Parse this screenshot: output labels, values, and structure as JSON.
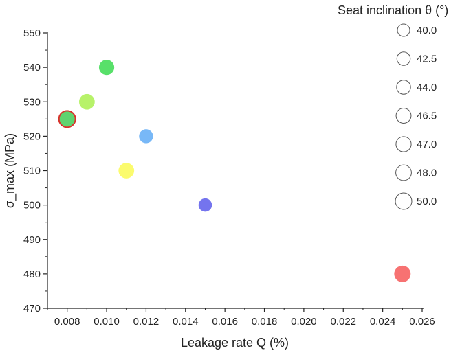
{
  "chart_data": {
    "type": "scatter",
    "xlabel": "Leakage rate Q (%)",
    "ylabel": "σ_max (MPa)",
    "xlim": [
      0.007,
      0.026
    ],
    "ylim": [
      470,
      550
    ],
    "xticks": [
      "0.008",
      "0.010",
      "0.012",
      "0.014",
      "0.016",
      "0.018",
      "0.020",
      "0.022",
      "0.024",
      "0.026"
    ],
    "yticks": [
      "470",
      "480",
      "490",
      "500",
      "510",
      "520",
      "530",
      "540",
      "550"
    ],
    "grid": false,
    "legend": {
      "title": "Seat inclination θ (°)",
      "placement": "top-right",
      "entries": [
        "40.0",
        "42.5",
        "44.0",
        "46.5",
        "47.0",
        "48.0",
        "50.0"
      ]
    },
    "points": [
      {
        "x": 0.008,
        "y": 525,
        "theta": 50.0,
        "color": "#5fd36f",
        "edge": "#d9312b"
      },
      {
        "x": 0.009,
        "y": 530,
        "theta": 48.0,
        "color": "#b7f26a",
        "edge": ""
      },
      {
        "x": 0.01,
        "y": 540,
        "theta": 47.0,
        "color": "#58e06a",
        "edge": ""
      },
      {
        "x": 0.011,
        "y": 510,
        "theta": 48.0,
        "color": "#fbfb6e",
        "edge": ""
      },
      {
        "x": 0.012,
        "y": 520,
        "theta": 44.0,
        "color": "#78b8f7",
        "edge": ""
      },
      {
        "x": 0.015,
        "y": 500,
        "theta": 42.5,
        "color": "#7474ee",
        "edge": ""
      },
      {
        "x": 0.025,
        "y": 480,
        "theta": 50.0,
        "color": "#f77272",
        "edge": ""
      }
    ]
  }
}
